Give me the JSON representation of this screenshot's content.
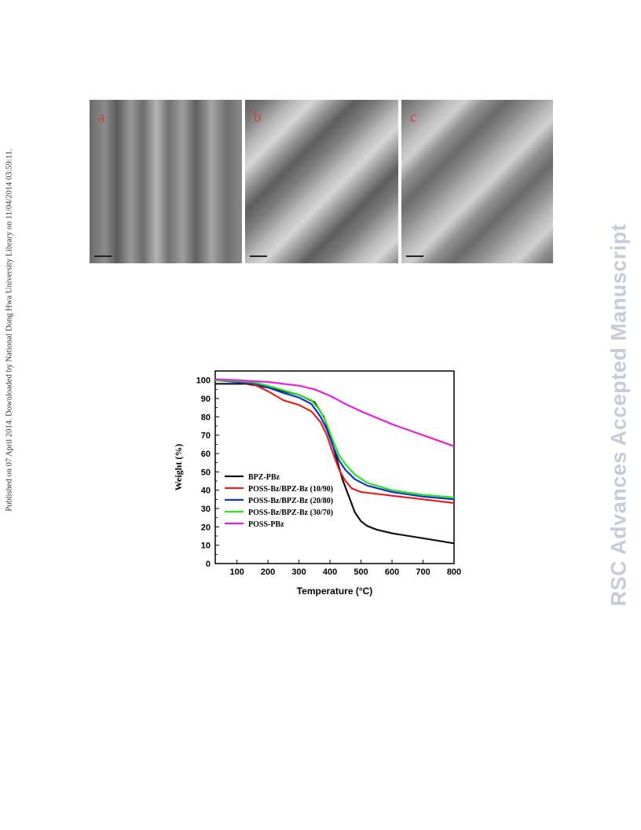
{
  "side_note": "Published on 07 April 2014. Downloaded by National Dong Hwa University Library on 11/04/2014 03:59:11.",
  "watermark": "RSC Advances Accepted Manuscript",
  "micrographs": [
    {
      "label": "a"
    },
    {
      "label": "b"
    },
    {
      "label": "c"
    }
  ],
  "chart_data": {
    "type": "line",
    "xlabel": "Temperature (°C)",
    "ylabel": "Weight (%)",
    "xlim": [
      30,
      800
    ],
    "ylim": [
      0,
      105
    ],
    "xticks": [
      100,
      200,
      300,
      400,
      500,
      600,
      700,
      800
    ],
    "yticks": [
      0,
      10,
      20,
      30,
      40,
      50,
      60,
      70,
      80,
      90,
      100
    ],
    "grid": false,
    "legend_position": "lower-left",
    "series": [
      {
        "name": "BPZ-PBz",
        "color": "#111111",
        "x": [
          30,
          100,
          130,
          200,
          300,
          350,
          380,
          400,
          420,
          440,
          460,
          480,
          500,
          520,
          550,
          600,
          700,
          800
        ],
        "y": [
          98,
          98,
          98,
          96,
          92,
          88,
          80,
          70,
          58,
          46,
          37,
          28,
          23,
          20.5,
          18.5,
          16.5,
          13.8,
          11
        ]
      },
      {
        "name": "POSS-Bz/BPZ-Bz (10/90)",
        "color": "#e8201a",
        "x": [
          30,
          100,
          150,
          200,
          250,
          300,
          340,
          370,
          390,
          410,
          430,
          450,
          470,
          500,
          550,
          600,
          700,
          800
        ],
        "y": [
          100,
          99,
          98,
          94,
          89,
          86.5,
          83,
          77,
          70,
          60,
          51,
          45,
          41,
          39,
          38,
          37,
          35,
          33
        ]
      },
      {
        "name": "POSS-Bz/BPZ-Bz (20/80)",
        "color": "#1a2bd8",
        "x": [
          30,
          100,
          150,
          200,
          250,
          300,
          340,
          370,
          390,
          410,
          430,
          450,
          480,
          520,
          600,
          700,
          800
        ],
        "y": [
          100,
          99,
          98.5,
          96,
          93,
          90.5,
          87,
          80,
          73,
          64,
          56,
          51,
          46,
          42.5,
          39,
          36.5,
          35
        ]
      },
      {
        "name": "POSS-Bz/BPZ-Bz (30/70)",
        "color": "#24e81a",
        "x": [
          30,
          100,
          150,
          200,
          250,
          300,
          340,
          370,
          390,
          410,
          430,
          450,
          480,
          520,
          600,
          700,
          800
        ],
        "y": [
          100,
          99.5,
          99,
          97,
          94.5,
          92,
          89,
          83,
          76,
          67,
          59,
          54,
          48.5,
          44,
          40,
          37.5,
          36
        ]
      },
      {
        "name": "POSS-PBz",
        "color": "#e81ee0",
        "x": [
          30,
          100,
          200,
          300,
          350,
          400,
          450,
          500,
          550,
          600,
          700,
          800
        ],
        "y": [
          100.5,
          100,
          99,
          97,
          95,
          91.5,
          87,
          83,
          79.5,
          76,
          70,
          64
        ]
      }
    ]
  }
}
